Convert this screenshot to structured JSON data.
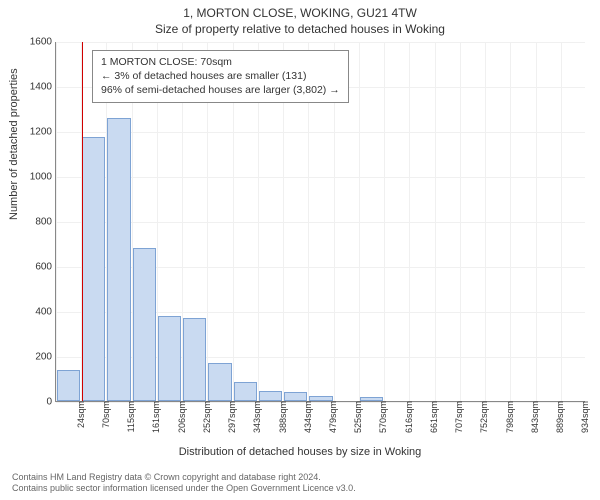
{
  "title": "1, MORTON CLOSE, WOKING, GU21 4TW",
  "subtitle": "Size of property relative to detached houses in Woking",
  "ylabel": "Number of detached properties",
  "xlabel": "Distribution of detached houses by size in Woking",
  "info_box": {
    "line1": "1 MORTON CLOSE: 70sqm",
    "line2": "← 3% of detached houses are smaller (131)",
    "line3": "96% of semi-detached houses are larger (3,802) →"
  },
  "chart": {
    "type": "histogram",
    "ylim": [
      0,
      1600
    ],
    "ytick_step": 200,
    "yticks": [
      0,
      200,
      400,
      600,
      800,
      1000,
      1200,
      1400,
      1600
    ],
    "xticks": [
      "24sqm",
      "70sqm",
      "115sqm",
      "161sqm",
      "206sqm",
      "252sqm",
      "297sqm",
      "343sqm",
      "388sqm",
      "434sqm",
      "479sqm",
      "525sqm",
      "570sqm",
      "616sqm",
      "661sqm",
      "707sqm",
      "752sqm",
      "798sqm",
      "843sqm",
      "889sqm",
      "934sqm"
    ],
    "bars": [
      {
        "label": "24sqm",
        "value": 140
      },
      {
        "label": "70sqm",
        "value": 1175
      },
      {
        "label": "115sqm",
        "value": 1260
      },
      {
        "label": "161sqm",
        "value": 680
      },
      {
        "label": "206sqm",
        "value": 380
      },
      {
        "label": "252sqm",
        "value": 370
      },
      {
        "label": "297sqm",
        "value": 170
      },
      {
        "label": "343sqm",
        "value": 85
      },
      {
        "label": "388sqm",
        "value": 45
      },
      {
        "label": "434sqm",
        "value": 38
      },
      {
        "label": "479sqm",
        "value": 22
      },
      {
        "label": "525sqm",
        "value": 0
      },
      {
        "label": "570sqm",
        "value": 18
      },
      {
        "label": "616sqm",
        "value": 0
      },
      {
        "label": "661sqm",
        "value": 0
      },
      {
        "label": "707sqm",
        "value": 0
      },
      {
        "label": "752sqm",
        "value": 0
      },
      {
        "label": "798sqm",
        "value": 0
      },
      {
        "label": "843sqm",
        "value": 0
      },
      {
        "label": "889sqm",
        "value": 0
      },
      {
        "label": "934sqm",
        "value": 0
      }
    ],
    "bar_fill": "#c9daf1",
    "bar_stroke": "#7ea3d4",
    "grid_color": "#f0f0f0",
    "marker_x_index": 1,
    "marker_color": "#d00000",
    "background_color": "#ffffff"
  },
  "footer": {
    "line1": "Contains HM Land Registry data © Crown copyright and database right 2024.",
    "line2": "Contains public sector information licensed under the Open Government Licence v3.0."
  }
}
